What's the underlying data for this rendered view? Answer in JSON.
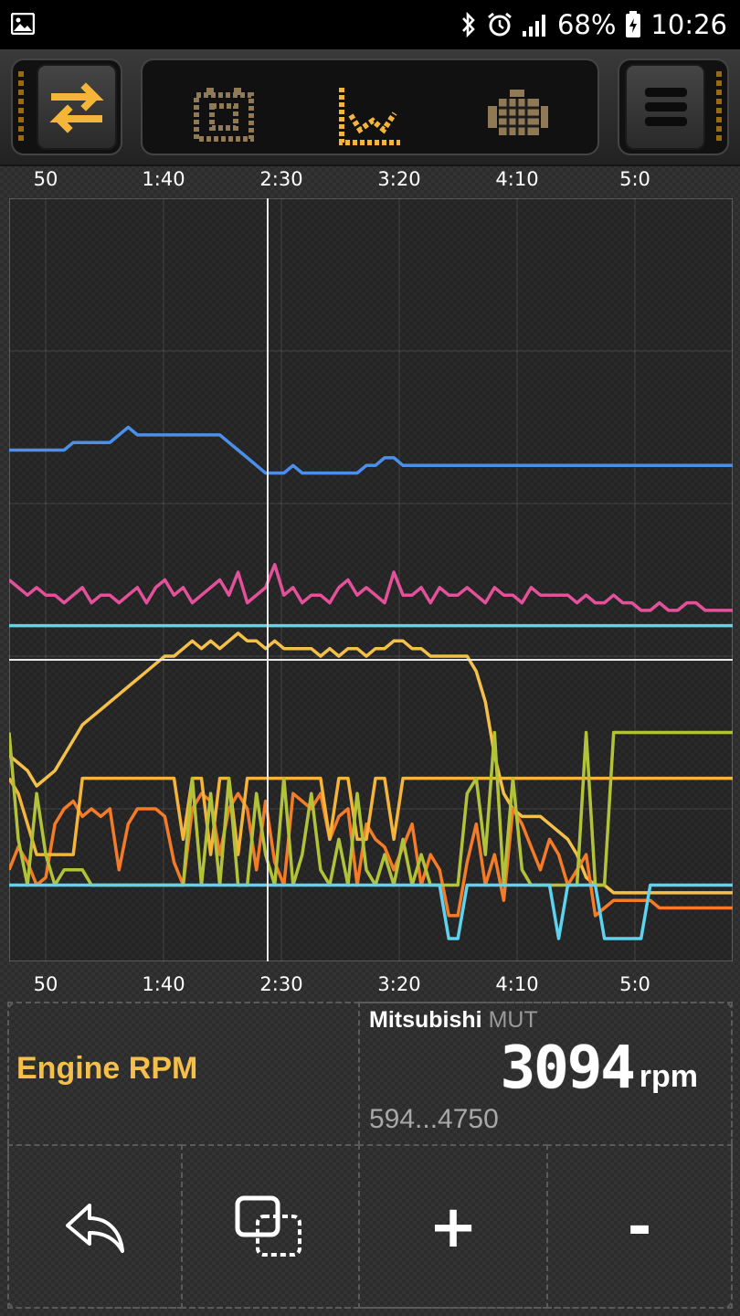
{
  "status_bar": {
    "battery_pct": "68%",
    "time": "10:26",
    "icons": [
      "gallery-icon",
      "bluetooth-icon",
      "alarm-icon",
      "signal-icon",
      "battery-charging-icon"
    ]
  },
  "toolbar": {
    "left_icon": "swap-arrows-icon",
    "modes": [
      "dashboard-grid-icon",
      "line-chart-icon",
      "engine-icon"
    ],
    "active_mode": "line-chart-icon",
    "menu_icon": "hamburger-menu-icon",
    "accent": "#f5b53b"
  },
  "time_axis": {
    "labels": [
      "50",
      "1:40",
      "2:30",
      "3:20",
      "4:10",
      "5:0"
    ]
  },
  "chart_data": {
    "type": "line",
    "x_ticks": [
      "50",
      "1:40",
      "2:30",
      "3:20",
      "4:10",
      "5:0"
    ],
    "cursor_x": "2:30",
    "grid": true,
    "series": [
      {
        "color": "#4a8fe8",
        "values": [
          67,
          67,
          67,
          67,
          67,
          67,
          67,
          68,
          68,
          68,
          68,
          68,
          69,
          70,
          69,
          69,
          69,
          69,
          69,
          69,
          69,
          69,
          69,
          69,
          68,
          67,
          66,
          65,
          64,
          64,
          64,
          65,
          64,
          64,
          64,
          64,
          64,
          64,
          64,
          65,
          65,
          66,
          66,
          65,
          65,
          65,
          65,
          65,
          65,
          65,
          65,
          65,
          65,
          65,
          65,
          65,
          65,
          65,
          65,
          65,
          65,
          65,
          65,
          65,
          65,
          65,
          65,
          65,
          65,
          65,
          65,
          65,
          65,
          65,
          65,
          65,
          65,
          65,
          65,
          65
        ]
      },
      {
        "color": "#e4519b",
        "values": [
          50,
          49,
          48,
          49,
          48,
          48,
          47,
          48,
          49,
          47,
          48,
          48,
          47,
          48,
          49,
          47,
          49,
          50,
          48,
          49,
          47,
          48,
          49,
          50,
          48,
          51,
          47,
          48,
          49,
          52,
          48,
          49,
          47,
          48,
          48,
          47,
          49,
          50,
          48,
          49,
          48,
          47,
          51,
          48,
          48,
          49,
          47,
          49,
          48,
          48,
          49,
          48,
          47,
          49,
          48,
          48,
          47,
          49,
          48,
          48,
          48,
          48,
          47,
          48,
          47,
          47,
          48,
          47,
          47,
          46,
          46,
          47,
          46,
          46,
          47,
          47,
          46,
          46,
          46,
          46
        ]
      },
      {
        "color": "#5ed3f0",
        "values": [
          44,
          44,
          44,
          44,
          44,
          44,
          44,
          44,
          44,
          44,
          44,
          44,
          44,
          44,
          44,
          44,
          44,
          44,
          44,
          44,
          44,
          44,
          44,
          44,
          44,
          44,
          44,
          44,
          44,
          44,
          44,
          44,
          44,
          44,
          44,
          44,
          44,
          44,
          44,
          44,
          44,
          44,
          44,
          44,
          44,
          44,
          44,
          44,
          44,
          44,
          44,
          44,
          44,
          44,
          44,
          44,
          44,
          44,
          44,
          44,
          44,
          44,
          44,
          44,
          44,
          44,
          44,
          44,
          44,
          44,
          44,
          44,
          44,
          44,
          44,
          44,
          44,
          44,
          44,
          44
        ]
      },
      {
        "color": "#f5c04a",
        "values": [
          27,
          26,
          25,
          23,
          24,
          25,
          27,
          29,
          31,
          32,
          33,
          34,
          35,
          36,
          37,
          38,
          39,
          40,
          40,
          41,
          42,
          41,
          42,
          41,
          42,
          43,
          42,
          42,
          41,
          42,
          41,
          41,
          41,
          41,
          40,
          41,
          40,
          41,
          41,
          40,
          41,
          41,
          42,
          42,
          41,
          41,
          40,
          40,
          40,
          40,
          40,
          38,
          34,
          27,
          22,
          20,
          19,
          19,
          19,
          18,
          17,
          16,
          14,
          11,
          10,
          10,
          9,
          9,
          9,
          9,
          9,
          9,
          9,
          9,
          9,
          9,
          9,
          9,
          9,
          9
        ]
      },
      {
        "color": "#f47b27",
        "values": [
          12,
          15,
          13,
          10,
          11,
          18,
          20,
          21,
          19,
          20,
          19,
          20,
          12,
          18,
          20,
          20,
          20,
          19,
          13,
          10,
          20,
          22,
          21,
          14,
          20,
          22,
          20,
          12,
          21,
          13,
          10,
          22,
          21,
          20,
          22,
          16,
          19,
          20,
          10,
          18,
          16,
          15,
          12,
          15,
          18,
          10,
          14,
          12,
          6,
          6,
          13,
          18,
          10,
          14,
          8,
          20,
          18,
          15,
          12,
          16,
          14,
          10,
          12,
          14,
          6,
          7,
          8,
          8,
          8,
          8,
          8,
          7,
          7,
          7,
          7,
          7,
          7,
          7,
          7,
          7
        ]
      },
      {
        "color": "#f5b53b",
        "values": [
          24,
          22,
          18,
          14,
          14,
          14,
          14,
          14,
          24,
          24,
          24,
          24,
          24,
          24,
          24,
          24,
          24,
          24,
          24,
          16,
          24,
          24,
          14,
          24,
          24,
          14,
          24,
          24,
          24,
          24,
          24,
          24,
          24,
          24,
          24,
          16,
          24,
          24,
          16,
          16,
          24,
          24,
          16,
          24,
          24,
          24,
          24,
          24,
          24,
          24,
          24,
          24,
          24,
          24,
          24,
          24,
          24,
          24,
          24,
          24,
          24,
          24,
          24,
          24,
          24,
          24,
          24,
          24,
          24,
          24,
          24,
          24,
          24,
          24,
          24,
          24,
          24,
          24,
          24,
          24
        ]
      },
      {
        "color": "#b2c33a",
        "values": [
          30,
          16,
          10,
          22,
          14,
          10,
          12,
          12,
          12,
          10,
          10,
          10,
          10,
          10,
          10,
          10,
          10,
          10,
          10,
          10,
          24,
          10,
          22,
          10,
          24,
          10,
          10,
          22,
          14,
          10,
          24,
          10,
          14,
          22,
          12,
          10,
          16,
          10,
          22,
          12,
          10,
          14,
          10,
          16,
          10,
          14,
          10,
          10,
          10,
          10,
          22,
          24,
          14,
          30,
          10,
          24,
          12,
          10,
          10,
          10,
          10,
          10,
          10,
          30,
          10,
          10,
          30,
          30,
          30,
          30,
          30,
          30,
          30,
          30,
          30,
          30,
          30,
          30,
          30,
          30
        ]
      },
      {
        "color": "#5ed3f0",
        "values": [
          10,
          10,
          10,
          10,
          10,
          10,
          10,
          10,
          10,
          10,
          10,
          10,
          10,
          10,
          10,
          10,
          10,
          10,
          10,
          10,
          10,
          10,
          10,
          10,
          10,
          10,
          10,
          10,
          10,
          10,
          10,
          10,
          10,
          10,
          10,
          10,
          10,
          10,
          10,
          10,
          10,
          10,
          10,
          10,
          10,
          10,
          10,
          10,
          3,
          3,
          10,
          10,
          10,
          10,
          10,
          10,
          10,
          10,
          10,
          10,
          3,
          10,
          10,
          10,
          10,
          3,
          3,
          3,
          3,
          3,
          10,
          10,
          10,
          10,
          10,
          10,
          10,
          10,
          10,
          10
        ]
      }
    ],
    "ylim": [
      0,
      100
    ]
  },
  "readout": {
    "param_name": "Engine RPM",
    "source_brand": "Mitsubishi",
    "source_proto": "MUT",
    "value": "3094",
    "unit": "rpm",
    "range": "594...4750"
  },
  "actions": [
    {
      "name": "back-button",
      "icon": "undo-arrow-icon",
      "label": ""
    },
    {
      "name": "duplicate-button",
      "icon": "copy-overlap-icon",
      "label": ""
    },
    {
      "name": "zoom-in-button",
      "icon": "plus-icon",
      "label": "+"
    },
    {
      "name": "zoom-out-button",
      "icon": "minus-icon",
      "label": "-"
    }
  ]
}
